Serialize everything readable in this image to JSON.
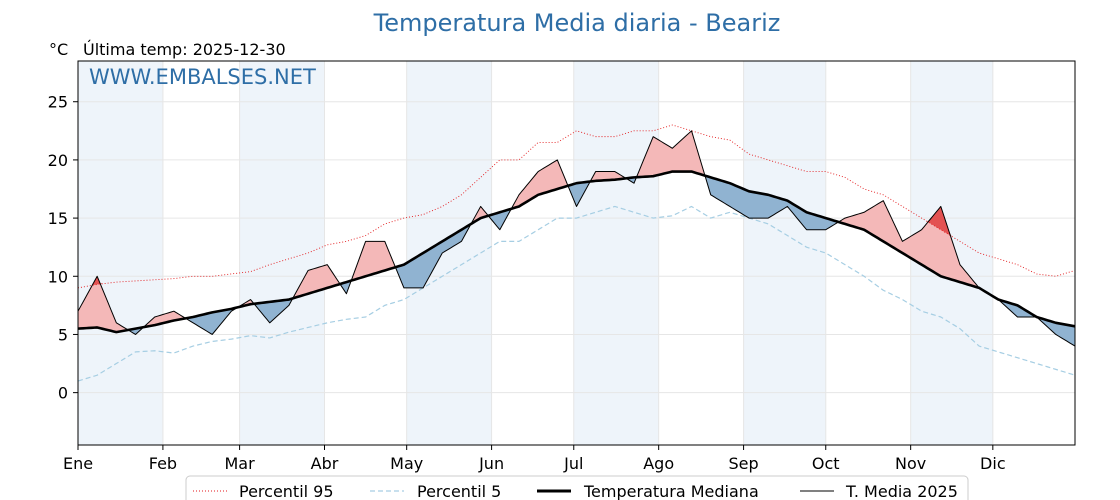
{
  "chart_data": {
    "type": "line",
    "title": "Temperatura Media diaria - Beariz",
    "unit_label": "°C",
    "last_temp_label": "Última temp: 2025-12-30",
    "watermark": "WWW.EMBALSES.NET",
    "ylim": [
      -4.5,
      28.5
    ],
    "yticks": [
      0,
      5,
      10,
      15,
      20,
      25
    ],
    "months": [
      "Ene",
      "Feb",
      "Mar",
      "Abr",
      "May",
      "Jun",
      "Jul",
      "Ago",
      "Sep",
      "Oct",
      "Nov",
      "Dic"
    ],
    "month_start_days": [
      1,
      32,
      60,
      91,
      121,
      152,
      182,
      213,
      244,
      274,
      305,
      335
    ],
    "days_in_year": 365,
    "x_unit": "día del año",
    "anchor_days": [
      1,
      8,
      15,
      22,
      29,
      36,
      43,
      50,
      57,
      64,
      71,
      78,
      85,
      92,
      99,
      106,
      113,
      120,
      127,
      134,
      141,
      148,
      155,
      162,
      169,
      176,
      183,
      190,
      197,
      204,
      211,
      218,
      225,
      232,
      239,
      246,
      253,
      260,
      267,
      274,
      281,
      288,
      295,
      302,
      309,
      316,
      323,
      330,
      337,
      344,
      351,
      358,
      365
    ],
    "series": [
      {
        "name": "Percentil 95",
        "color": "#e31a1c",
        "style": "dotted",
        "values": [
          9,
          9.3,
          9.5,
          9.6,
          9.7,
          9.8,
          10,
          10,
          10.2,
          10.4,
          11,
          11.5,
          12,
          12.7,
          13,
          13.5,
          14.5,
          15,
          15.3,
          16,
          17,
          18.5,
          20,
          20,
          21.5,
          21.5,
          22.5,
          22,
          22,
          22.5,
          22.5,
          23,
          22.5,
          22,
          21.7,
          20.5,
          20,
          19.5,
          19,
          19,
          18.5,
          17.5,
          17,
          16,
          15,
          14,
          13,
          12,
          11.5,
          11,
          10.2,
          10,
          10.5
        ]
      },
      {
        "name": "Percentil 5",
        "color": "#a6cee3",
        "style": "dashed",
        "values": [
          1,
          1.5,
          2.5,
          3.5,
          3.6,
          3.4,
          4,
          4.4,
          4.6,
          4.9,
          4.7,
          5.2,
          5.6,
          6,
          6.3,
          6.5,
          7.5,
          8,
          9,
          10,
          11,
          12,
          13,
          13,
          14,
          15,
          15,
          15.5,
          16,
          15.5,
          15,
          15.2,
          16,
          15,
          15.5,
          15,
          14.5,
          13.5,
          12.5,
          12,
          11,
          10,
          8.8,
          8,
          7,
          6.5,
          5.5,
          4,
          3.5,
          3,
          2.5,
          2,
          1.5
        ]
      },
      {
        "name": "Temperatura Mediana",
        "color": "#000000",
        "style": "solid-thick",
        "values": [
          5.5,
          5.6,
          5.2,
          5.5,
          5.8,
          6.2,
          6.5,
          6.9,
          7.2,
          7.6,
          7.8,
          8,
          8.5,
          9,
          9.5,
          10,
          10.5,
          11,
          12,
          13,
          14,
          15,
          15.5,
          16,
          17,
          17.5,
          18,
          18.2,
          18.3,
          18.5,
          18.6,
          19,
          19,
          18.5,
          18,
          17.3,
          17,
          16.5,
          15.5,
          15,
          14.5,
          14,
          13,
          12,
          11,
          10,
          9.5,
          9,
          8,
          7.5,
          6.5,
          6,
          5.7
        ]
      },
      {
        "name": "T. Media 2025",
        "color": "#000000",
        "style": "solid",
        "values": [
          7,
          10,
          6,
          5,
          6.5,
          7,
          6,
          5,
          7,
          8,
          6,
          7.5,
          10.5,
          11,
          8.5,
          13,
          13,
          9,
          9,
          12,
          13,
          16,
          14,
          17,
          19,
          20,
          16,
          19,
          19,
          18,
          22,
          21,
          22.5,
          17,
          16,
          15,
          15,
          16,
          14,
          14,
          15,
          15.5,
          16.5,
          13,
          14,
          16,
          11,
          9,
          8,
          6.5,
          6.5,
          5,
          4
        ]
      }
    ]
  },
  "legend": {
    "p95_label": "Percentil 95",
    "p5_label": "Percentil 5",
    "median_label": "Temperatura Mediana",
    "current_label": "T. Media 2025"
  },
  "colors": {
    "above_light": "#f4b8b8",
    "above_strong": "#e35252",
    "below": "#90b3d1",
    "below_strong": "#1f5f9a",
    "band": "#eef4fa"
  }
}
